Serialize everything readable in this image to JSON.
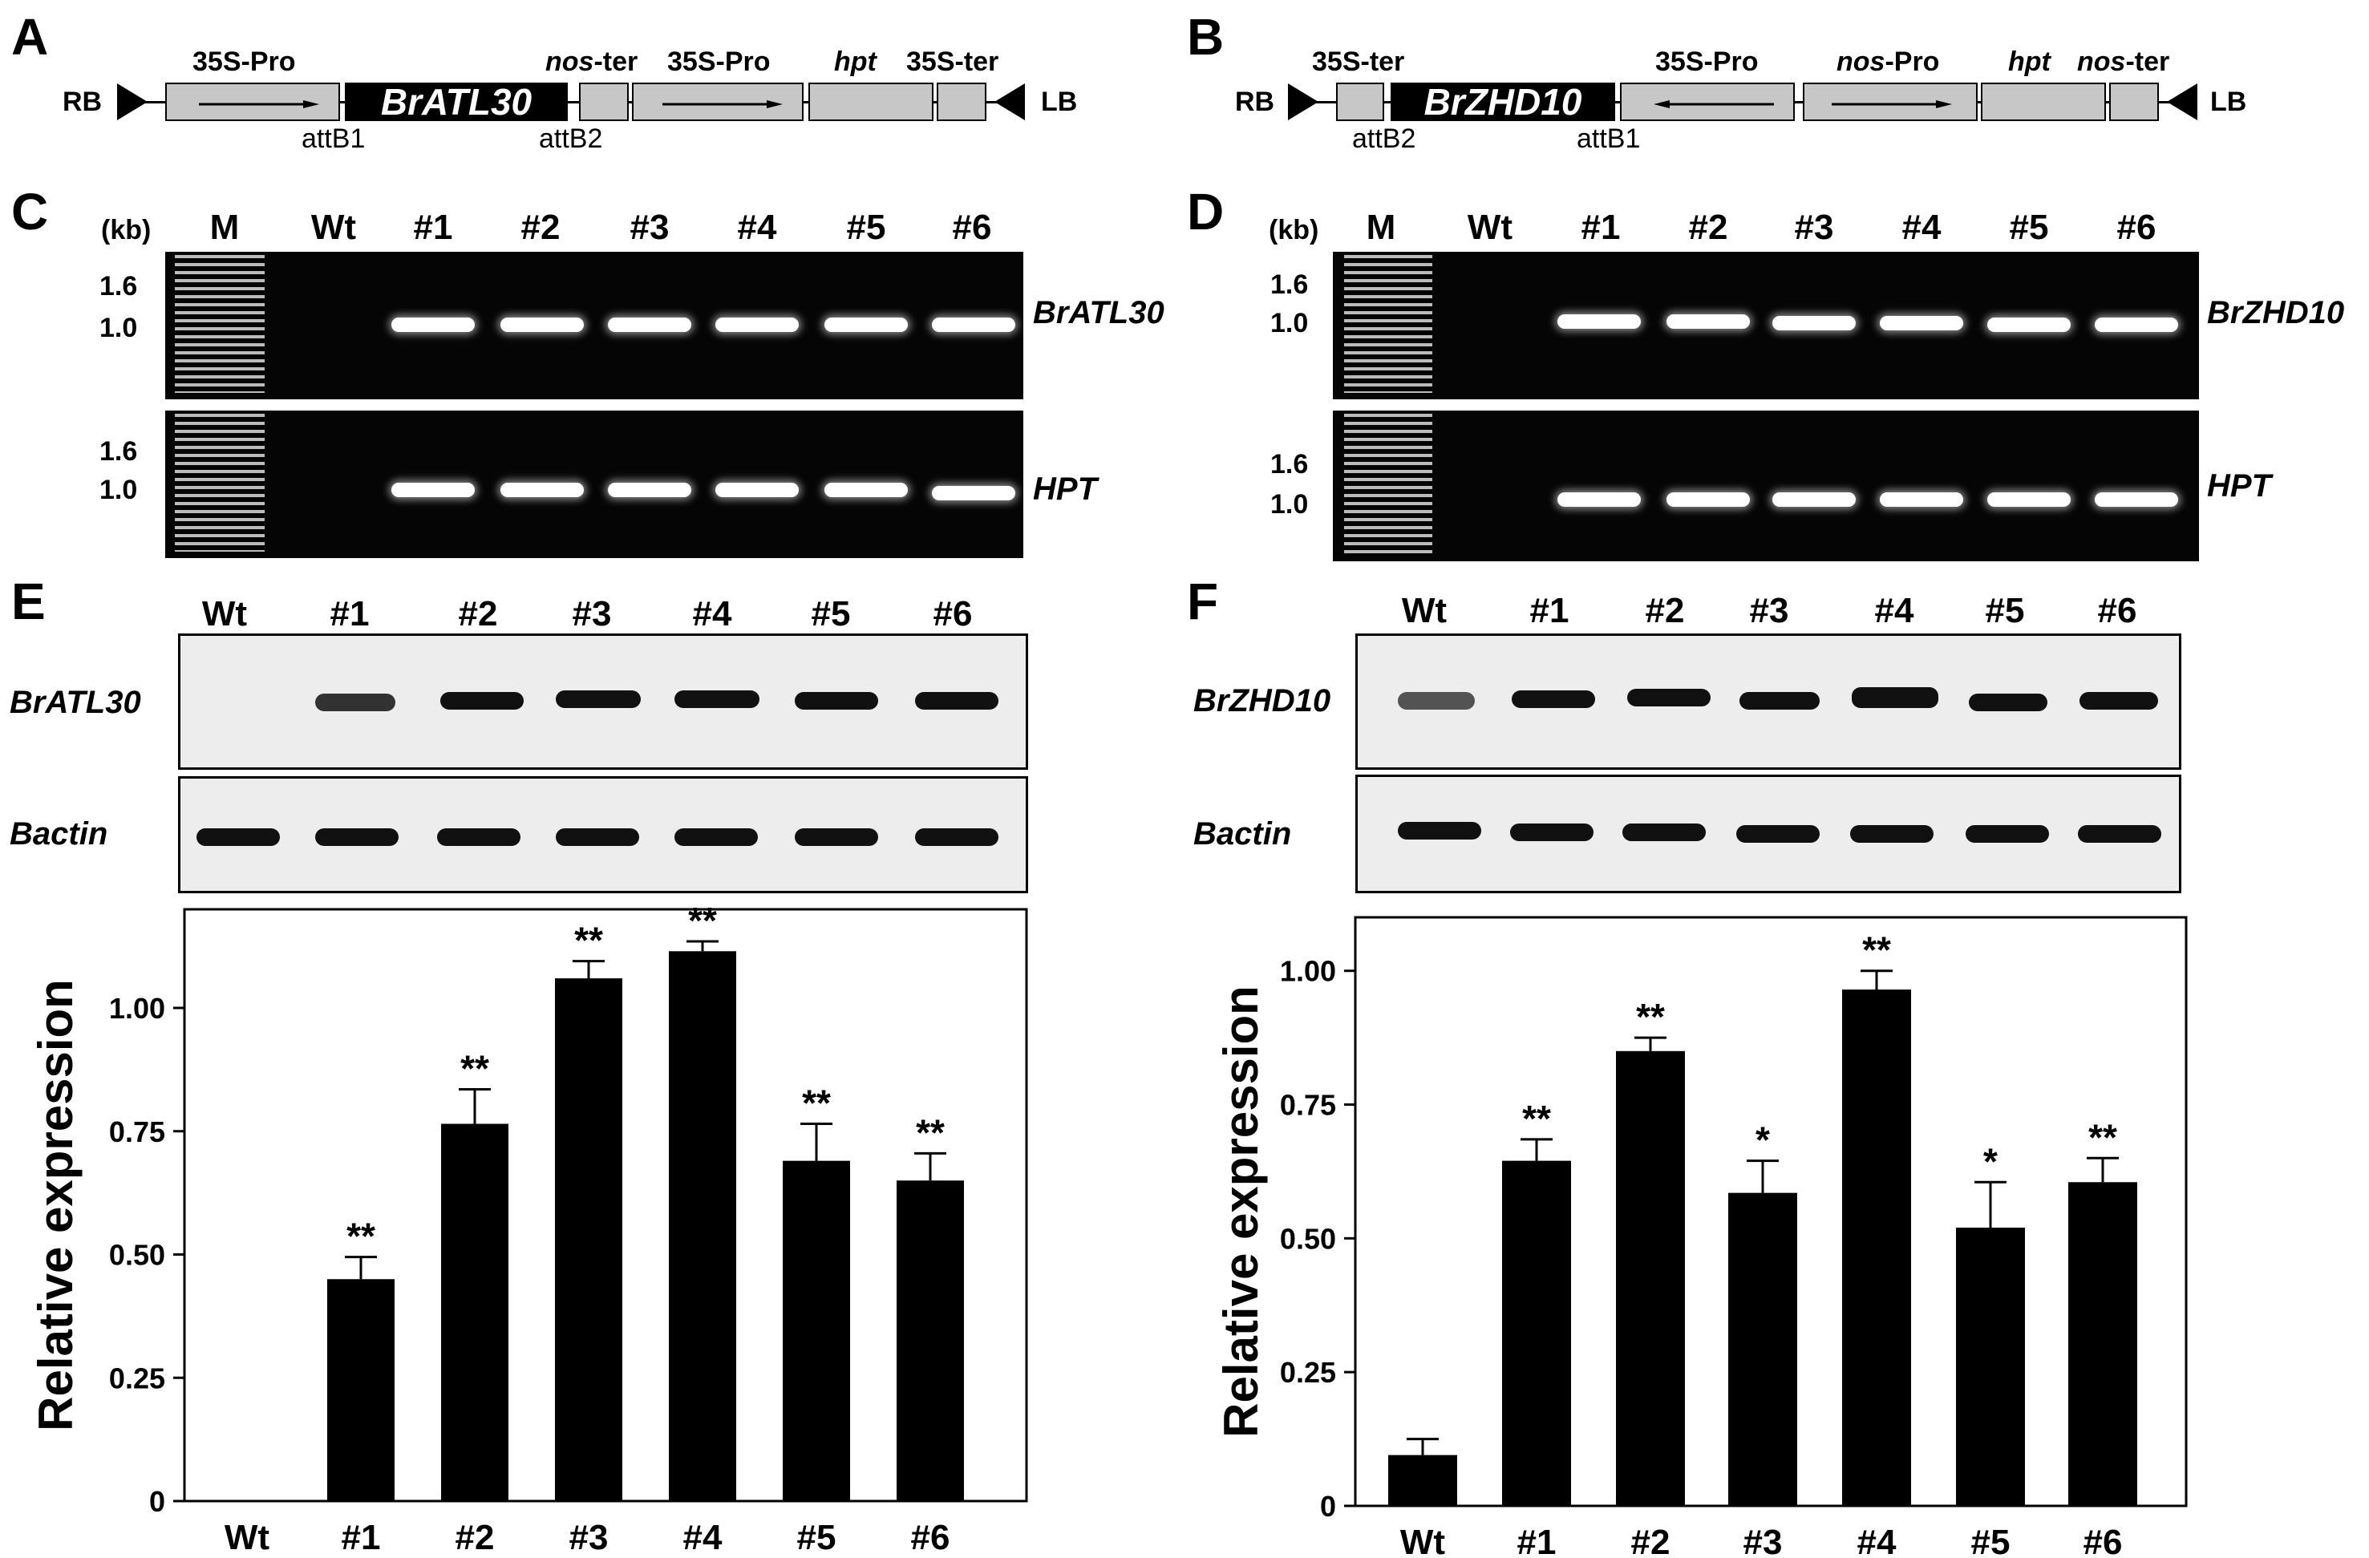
{
  "panels": {
    "A": {
      "letter": "A"
    },
    "B": {
      "letter": "B"
    },
    "C": {
      "letter": "C"
    },
    "D": {
      "letter": "D"
    },
    "E": {
      "letter": "E"
    },
    "F": {
      "letter": "F"
    }
  },
  "construct_A": {
    "rb": "RB",
    "lb": "LB",
    "gene": "BrATL30",
    "pro1": "35S-Pro",
    "nos_italic": "nos",
    "nos_suffix": "-ter",
    "pro2": "35S-Pro",
    "hpt": "hpt",
    "ter": "35S-ter",
    "attb1": "attB1",
    "attb2": "attB2"
  },
  "construct_B": {
    "rb": "RB",
    "lb": "LB",
    "gene": "BrZHD10",
    "ter1": "35S-ter",
    "pro1": "35S-Pro",
    "nos_italic": "nos",
    "nos_pro_suffix": "-Pro",
    "hpt": "hpt",
    "nos_ter_italic": "nos",
    "nos_ter_suffix": "-ter",
    "attb2": "attB2",
    "attb1": "attB1"
  },
  "gels": {
    "kb_label": "(kb)",
    "marker": "M",
    "lanes": [
      "Wt",
      "#1",
      "#2",
      "#3",
      "#4",
      "#5",
      "#6"
    ],
    "sizes": [
      "1.6",
      "1.0"
    ],
    "C_genes": [
      "BrATL30",
      "HPT"
    ],
    "D_genes": [
      "BrZHD10",
      "HPT"
    ]
  },
  "rtpcr": {
    "lanes": [
      "Wt",
      "#1",
      "#2",
      "#3",
      "#4",
      "#5",
      "#6"
    ],
    "E_genes": [
      "BrATL30",
      "Bactin"
    ],
    "F_genes": [
      "BrZHD10",
      "Bactin"
    ]
  },
  "chart_data": [
    {
      "type": "bar",
      "panel": "E",
      "categories": [
        "Wt",
        "#1",
        "#2",
        "#3",
        "#4",
        "#5",
        "#6"
      ],
      "values": [
        0,
        0.45,
        0.765,
        1.06,
        1.115,
        0.69,
        0.65
      ],
      "errors": [
        0,
        0.045,
        0.07,
        0.035,
        0.02,
        0.075,
        0.055
      ],
      "significance": [
        "",
        "**",
        "**",
        "**",
        "**",
        "**",
        "**"
      ],
      "ylabel": "Relative expression",
      "yticks": [
        "0",
        "0.25",
        "0.50",
        "0.75",
        "1.00"
      ],
      "ylim": [
        0,
        1.2
      ],
      "bar_color": "#000000"
    },
    {
      "type": "bar",
      "panel": "F",
      "categories": [
        "Wt",
        "#1",
        "#2",
        "#3",
        "#4",
        "#5",
        "#6"
      ],
      "values": [
        0.095,
        0.645,
        0.85,
        0.585,
        0.965,
        0.52,
        0.605
      ],
      "errors": [
        0.03,
        0.04,
        0.025,
        0.06,
        0.035,
        0.085,
        0.045
      ],
      "significance": [
        "",
        "**",
        "**",
        "*",
        "**",
        "*",
        "**"
      ],
      "ylabel": "Relative expression",
      "yticks": [
        "0",
        "0.25",
        "0.50",
        "0.75",
        "1.00"
      ],
      "ylim": [
        0,
        1.1
      ],
      "bar_color": "#000000"
    }
  ]
}
